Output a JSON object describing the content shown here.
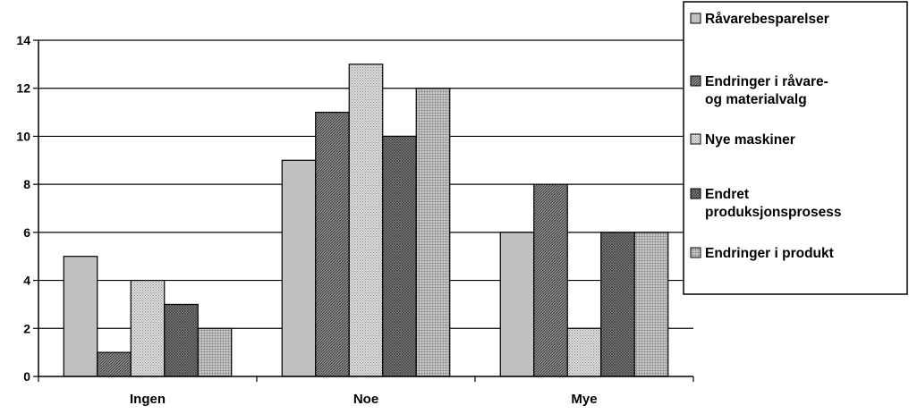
{
  "chart_data": {
    "type": "bar",
    "title": "",
    "xlabel": "",
    "ylabel": "",
    "categories": [
      "Ingen",
      "Noe",
      "Mye"
    ],
    "ylim": [
      0,
      14
    ],
    "yticks": [
      0,
      2,
      4,
      6,
      8,
      10,
      12,
      14
    ],
    "grid": true,
    "legend_position": "right",
    "series": [
      {
        "name": "Råvarebesparelser",
        "values": [
          5,
          9,
          6
        ],
        "color": "#c0c0c0",
        "pattern": "solid"
      },
      {
        "name": "Endringer i råvare- og materialvalg",
        "values": [
          1,
          11,
          8
        ],
        "color": "#808080",
        "pattern": "dark-diagonal"
      },
      {
        "name": "Nye maskiner",
        "values": [
          4,
          13,
          2
        ],
        "color": "#d4d4d4",
        "pattern": "light-dots"
      },
      {
        "name": "Endret produksjonsprosess",
        "values": [
          3,
          10,
          6
        ],
        "color": "#7a7a7a",
        "pattern": "dark-crosshatch"
      },
      {
        "name": "Endringer i produkt",
        "values": [
          2,
          12,
          6
        ],
        "color": "#a0a0a0",
        "pattern": "grid"
      }
    ]
  }
}
